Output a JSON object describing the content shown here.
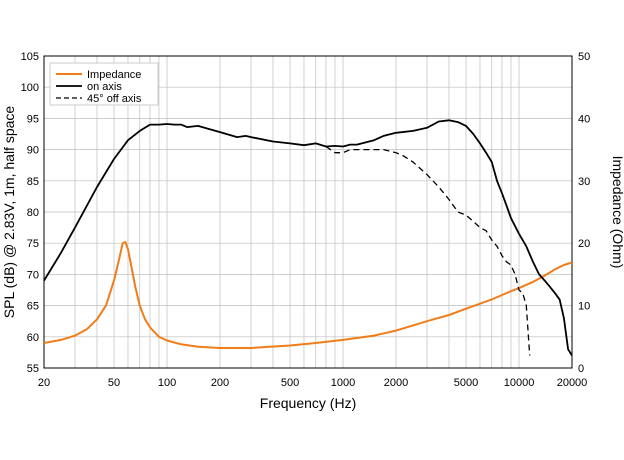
{
  "chart_data": {
    "type": "line",
    "title": "",
    "xlabel": "Frequency (Hz)",
    "ylabel": "SPL (dB) @ 2.83V, 1m, half space",
    "y2label": "Impedance (Ohm)",
    "xscale": "log",
    "xlim": [
      20,
      20000
    ],
    "ylim": [
      55,
      105
    ],
    "y2lim": [
      0,
      50
    ],
    "grid": true,
    "legend_position": "top-left",
    "x_ticks": [
      {
        "value": 20,
        "label": "20"
      },
      {
        "value": 50,
        "label": "50"
      },
      {
        "value": 100,
        "label": "100"
      },
      {
        "value": 200,
        "label": "200"
      },
      {
        "value": 500,
        "label": "500"
      },
      {
        "value": 1000,
        "label": "1000"
      },
      {
        "value": 2000,
        "label": "2000"
      },
      {
        "value": 5000,
        "label": "5000"
      },
      {
        "value": 10000,
        "label": "10000"
      },
      {
        "value": 20000,
        "label": "20000"
      }
    ],
    "y_ticks": [
      "55",
      "60",
      "65",
      "70",
      "75",
      "80",
      "85",
      "90",
      "95",
      "100",
      "105"
    ],
    "y2_ticks": [
      "0",
      "10",
      "20",
      "30",
      "40",
      "50"
    ],
    "series": [
      {
        "name": "Impedance",
        "axis": "right",
        "color": "#f07d1a",
        "dash": "none",
        "x": [
          20,
          25,
          30,
          35,
          40,
          45,
          50,
          53,
          56,
          58,
          60,
          63,
          66,
          70,
          75,
          80,
          90,
          100,
          120,
          150,
          200,
          300,
          500,
          700,
          1000,
          1500,
          2000,
          3000,
          4000,
          5000,
          6000,
          7000,
          8000,
          9000,
          10000,
          12000,
          14000,
          16000,
          18000,
          20000
        ],
        "values": [
          4.0,
          4.5,
          5.2,
          6.2,
          7.8,
          10.0,
          14.0,
          17.0,
          20.0,
          20.2,
          19.0,
          16.0,
          13.0,
          10.0,
          7.8,
          6.5,
          5.0,
          4.4,
          3.8,
          3.4,
          3.2,
          3.2,
          3.6,
          4.0,
          4.5,
          5.2,
          6.0,
          7.5,
          8.5,
          9.5,
          10.3,
          11.0,
          11.7,
          12.3,
          12.8,
          13.8,
          14.8,
          15.8,
          16.5,
          16.9
        ]
      },
      {
        "name": "on axis",
        "axis": "left",
        "color": "#000000",
        "dash": "none",
        "x": [
          20,
          25,
          30,
          35,
          40,
          50,
          60,
          70,
          80,
          90,
          100,
          110,
          120,
          130,
          150,
          200,
          250,
          280,
          300,
          400,
          500,
          600,
          700,
          800,
          900,
          1000,
          1100,
          1200,
          1500,
          1700,
          2000,
          2500,
          3000,
          3500,
          4000,
          4500,
          5000,
          5500,
          6000,
          6500,
          7000,
          7500,
          8000,
          8500,
          9000,
          10000,
          11000,
          12000,
          13000,
          14000,
          15000,
          16000,
          17000,
          18000,
          19000,
          20000
        ],
        "values": [
          69.0,
          73.5,
          77.5,
          81.0,
          84.0,
          88.5,
          91.5,
          93.0,
          94.0,
          94.0,
          94.1,
          94.0,
          94.0,
          93.6,
          93.8,
          92.8,
          92.0,
          92.2,
          92.0,
          91.3,
          91.0,
          90.7,
          91.0,
          90.5,
          90.6,
          90.5,
          90.8,
          90.8,
          91.5,
          92.2,
          92.7,
          93.0,
          93.5,
          94.5,
          94.7,
          94.4,
          93.8,
          92.5,
          91.0,
          89.5,
          88.0,
          85.0,
          83.0,
          81.0,
          79.0,
          76.5,
          74.5,
          72.0,
          70.0,
          69.0,
          68.0,
          67.0,
          66.0,
          63.0,
          58.0,
          57.0
        ]
      },
      {
        "name": "45° off axis",
        "axis": "left",
        "color": "#000000",
        "dash": "6,4",
        "x": [
          800,
          900,
          1000,
          1100,
          1200,
          1500,
          1700,
          2000,
          2200,
          2500,
          3000,
          3500,
          4000,
          4500,
          5000,
          5500,
          6000,
          6500,
          7000,
          7500,
          8000,
          8500,
          9000,
          9500,
          10000,
          10500,
          11000,
          11500
        ],
        "values": [
          90.5,
          89.5,
          89.5,
          90.0,
          90.0,
          90.0,
          90.0,
          89.5,
          89.0,
          88.0,
          86.0,
          84.0,
          82.0,
          80.0,
          79.5,
          78.5,
          77.5,
          77.0,
          75.5,
          74.5,
          73.0,
          72.0,
          71.5,
          70.0,
          67.5,
          67.0,
          65.0,
          57.0
        ]
      }
    ]
  }
}
